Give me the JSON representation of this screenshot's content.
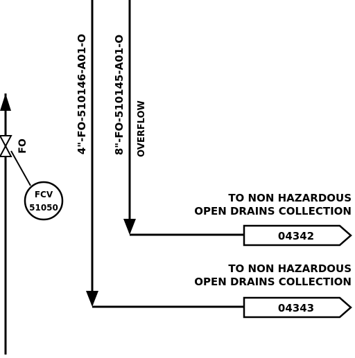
{
  "line_numbers": {
    "line_4in": "4\"-FO-510146-A01-O",
    "line_8in": "8\"-FO-510145-A01-O",
    "overflow": "OVERFLOW"
  },
  "valve": {
    "fail_position": "FO",
    "instrument_tag_type": "FCV",
    "instrument_tag_number": "51050"
  },
  "offpage_connectors": [
    {
      "note_line1": "TO NON HAZARDOUS",
      "note_line2": "OPEN DRAINS COLLECTION",
      "sheet": "04342"
    },
    {
      "note_line1": "TO NON HAZARDOUS",
      "note_line2": "OPEN DRAINS COLLECTION",
      "sheet": "04343"
    }
  ]
}
